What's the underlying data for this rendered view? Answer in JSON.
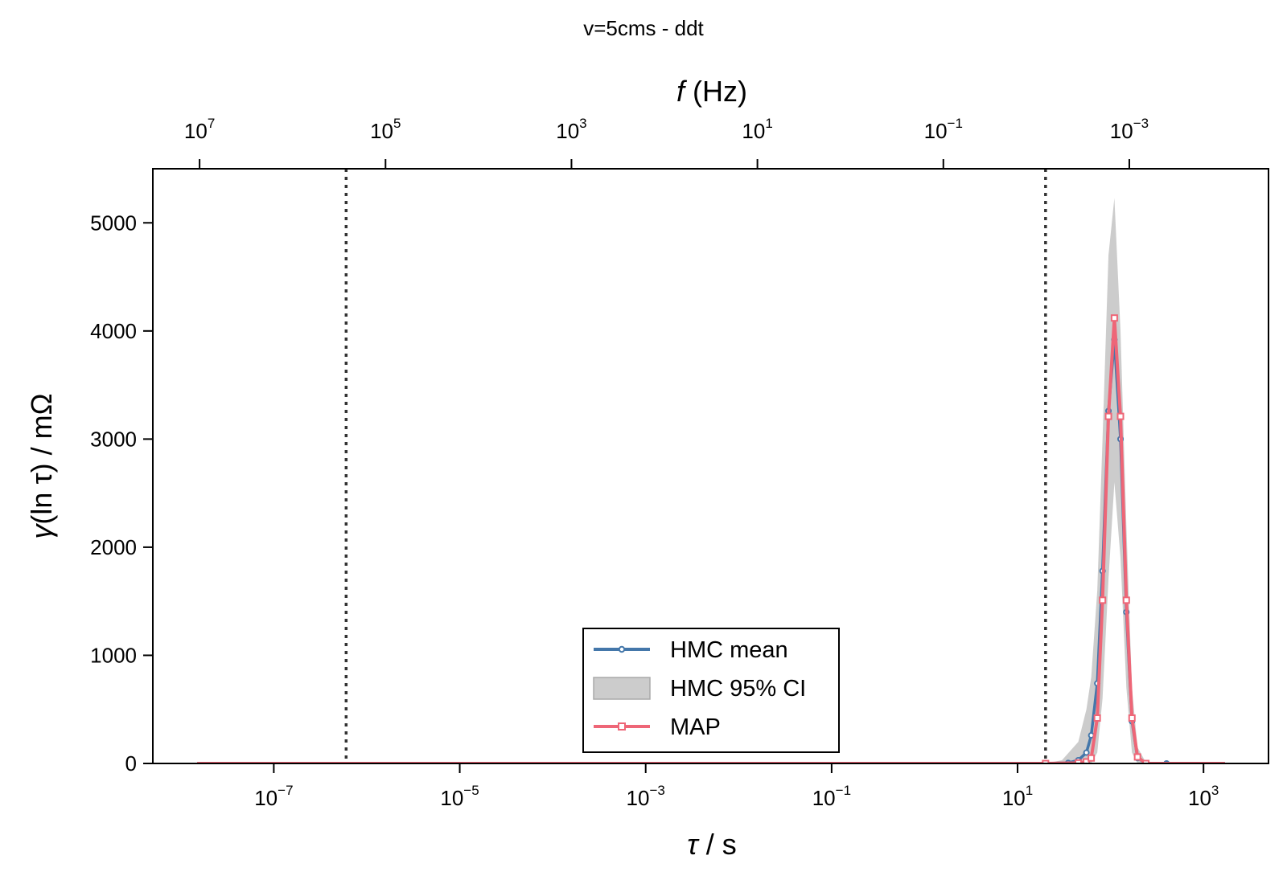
{
  "chart_data": {
    "type": "line",
    "title": "v=5cms - ddt",
    "xlabel_symbol": "τ",
    "xlabel_unit": " / s",
    "ylabel_symbol": "γ",
    "ylabel_paren": "(ln τ) / mΩ",
    "top_xlabel_symbol": "f",
    "top_xlabel_unit": " (Hz)",
    "x_scale": "log",
    "xlim": [
      5e-09,
      5000
    ],
    "ylim": [
      0,
      5500
    ],
    "y_ticks": [
      0,
      1000,
      2000,
      3000,
      4000,
      5000
    ],
    "x_ticks": [
      {
        "value": 1e-07,
        "base": "10",
        "exp": "−7"
      },
      {
        "value": 1e-05,
        "base": "10",
        "exp": "−5"
      },
      {
        "value": 0.001,
        "base": "10",
        "exp": "−3"
      },
      {
        "value": 0.1,
        "base": "10",
        "exp": "−1"
      },
      {
        "value": 10,
        "base": "10",
        "exp": "1"
      },
      {
        "value": 1000,
        "base": "10",
        "exp": "3"
      }
    ],
    "top_x_ticks": [
      {
        "freq": 10000000.0,
        "base": "10",
        "exp": "7"
      },
      {
        "freq": 100000.0,
        "base": "10",
        "exp": "5"
      },
      {
        "freq": 1000.0,
        "base": "10",
        "exp": "3"
      },
      {
        "freq": 10.0,
        "base": "10",
        "exp": "1"
      },
      {
        "freq": 0.1,
        "base": "10",
        "exp": "−1"
      },
      {
        "freq": 0.001,
        "base": "10",
        "exp": "−3"
      }
    ],
    "vlines": [
      6e-07,
      20
    ],
    "series": [
      {
        "name": "HMC mean",
        "color": "#4477aa",
        "marker": "circle",
        "points": [
          [
            1.5e-08,
            0
          ],
          [
            20,
            0
          ],
          [
            35,
            5
          ],
          [
            45,
            30
          ],
          [
            55,
            100
          ],
          [
            62,
            260
          ],
          [
            72,
            740
          ],
          [
            82,
            1780
          ],
          [
            95,
            3260
          ],
          [
            110,
            3920
          ],
          [
            128,
            3000
          ],
          [
            148,
            1400
          ],
          [
            170,
            390
          ],
          [
            195,
            50
          ],
          [
            240,
            3
          ],
          [
            400,
            0
          ],
          [
            1700,
            0
          ]
        ]
      },
      {
        "name": "HMC 95% CI",
        "color": "#bbbbbb",
        "type": "band",
        "upper": [
          [
            1.5e-08,
            0
          ],
          [
            20,
            0
          ],
          [
            30,
            30
          ],
          [
            45,
            200
          ],
          [
            55,
            500
          ],
          [
            62,
            800
          ],
          [
            72,
            1600
          ],
          [
            82,
            3000
          ],
          [
            95,
            4700
          ],
          [
            110,
            5230
          ],
          [
            128,
            4000
          ],
          [
            148,
            2200
          ],
          [
            170,
            700
          ],
          [
            195,
            150
          ],
          [
            240,
            10
          ],
          [
            400,
            0
          ],
          [
            1700,
            0
          ]
        ],
        "lower": [
          [
            1.5e-08,
            0
          ],
          [
            55,
            0
          ],
          [
            62,
            0
          ],
          [
            72,
            100
          ],
          [
            82,
            600
          ],
          [
            95,
            1700
          ],
          [
            110,
            2600
          ],
          [
            128,
            1900
          ],
          [
            148,
            700
          ],
          [
            170,
            100
          ],
          [
            195,
            0
          ],
          [
            1700,
            0
          ]
        ]
      },
      {
        "name": "MAP",
        "color": "#ee6677",
        "marker": "square",
        "points": [
          [
            1.5e-08,
            0
          ],
          [
            20,
            0
          ],
          [
            45,
            5
          ],
          [
            55,
            15
          ],
          [
            62,
            50
          ],
          [
            72,
            420
          ],
          [
            82,
            1510
          ],
          [
            95,
            3210
          ],
          [
            110,
            4120
          ],
          [
            128,
            3210
          ],
          [
            148,
            1510
          ],
          [
            170,
            420
          ],
          [
            195,
            60
          ],
          [
            240,
            0
          ],
          [
            1700,
            0
          ]
        ]
      }
    ],
    "legend": {
      "position": "lower-center",
      "entries": [
        "HMC mean",
        "HMC 95% CI",
        "MAP"
      ]
    }
  }
}
